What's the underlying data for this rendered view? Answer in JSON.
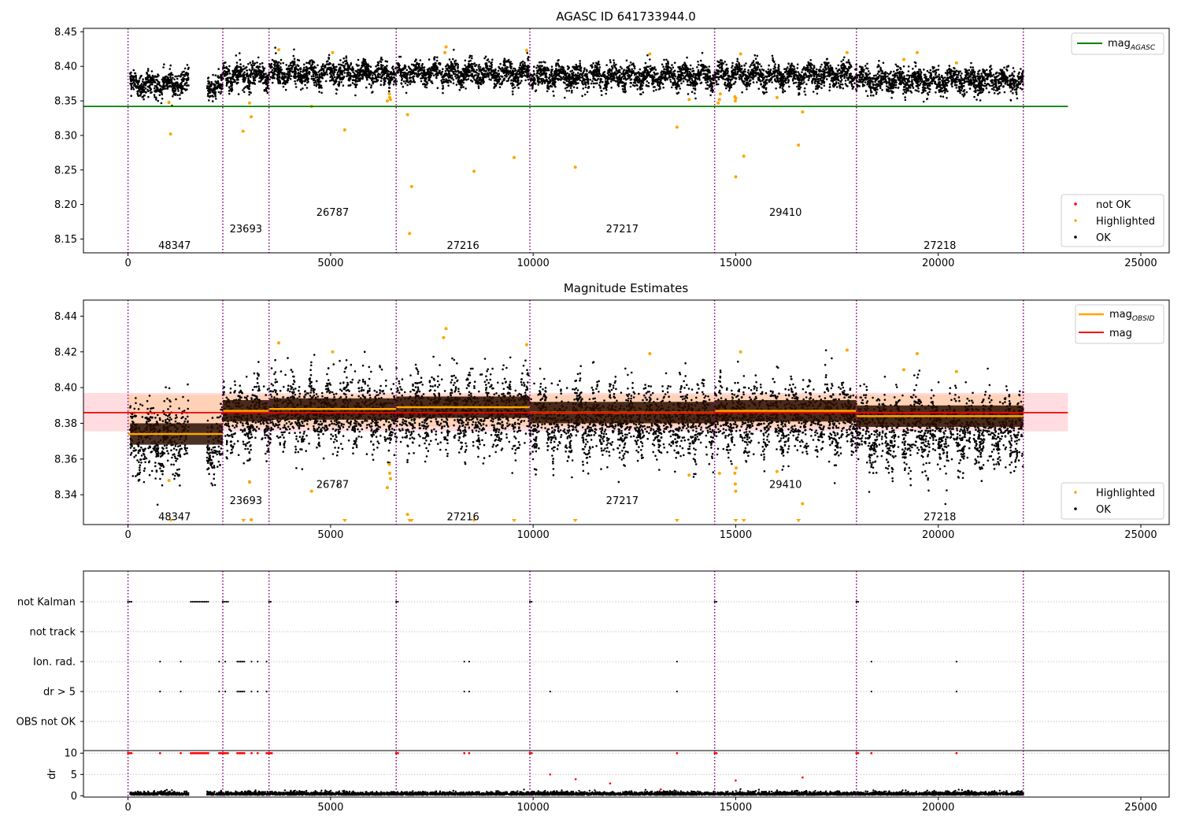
{
  "chart_data": [
    {
      "type": "scatter",
      "title": "AGASC ID 641733944.0",
      "xlim": [
        -1100,
        25700
      ],
      "ylim": [
        8.13,
        8.455
      ],
      "xticks": [
        0,
        5000,
        10000,
        15000,
        20000,
        25000
      ],
      "xtick_labels": [
        "0",
        "5000",
        "10000",
        "15000",
        "20000",
        "25000"
      ],
      "yticks": [
        8.15,
        8.2,
        8.25,
        8.3,
        8.35,
        8.4,
        8.45
      ],
      "ytick_labels": [
        "8.15",
        "8.20",
        "8.25",
        "8.30",
        "8.35",
        "8.40",
        "8.45"
      ],
      "mag_agasc": 8.342,
      "mag_agasc_x_range": [
        -1100,
        23200
      ],
      "mag_agasc_color": "#008000",
      "obsid_boundaries": [
        0,
        2340,
        3480,
        6620,
        9920,
        14480,
        17980,
        22100
      ],
      "obsid_labels": [
        {
          "text": "48347",
          "x": 1150,
          "y": 8.14
        },
        {
          "text": "23693",
          "x": 2910,
          "y": 8.164
        },
        {
          "text": "26787",
          "x": 5050,
          "y": 8.188
        },
        {
          "text": "27216",
          "x": 8270,
          "y": 8.14
        },
        {
          "text": "27217",
          "x": 12200,
          "y": 8.164
        },
        {
          "text": "29410",
          "x": 16230,
          "y": 8.188
        },
        {
          "text": "27218",
          "x": 20040,
          "y": 8.14
        }
      ],
      "segments": [
        {
          "x0": 50,
          "x1": 1500,
          "mean": 8.375
        },
        {
          "x0": 1950,
          "x1": 2340,
          "mean": 8.372
        },
        {
          "x0": 2340,
          "x1": 3480,
          "mean": 8.387
        },
        {
          "x0": 3480,
          "x1": 6620,
          "mean": 8.39
        },
        {
          "x0": 6620,
          "x1": 9920,
          "mean": 8.39
        },
        {
          "x0": 9920,
          "x1": 14480,
          "mean": 8.385
        },
        {
          "x0": 14480,
          "x1": 17980,
          "mean": 8.387
        },
        {
          "x0": 17980,
          "x1": 22100,
          "mean": 8.38
        }
      ],
      "outliers": [
        [
          1050,
          8.302
        ],
        [
          1010,
          8.348
        ],
        [
          2840,
          8.306
        ],
        [
          3040,
          8.327
        ],
        [
          3000,
          8.347
        ],
        [
          4530,
          8.342
        ],
        [
          5350,
          8.308
        ],
        [
          6400,
          8.35
        ],
        [
          6900,
          8.33
        ],
        [
          6950,
          8.158
        ],
        [
          7000,
          8.226
        ],
        [
          8540,
          8.248
        ],
        [
          9530,
          8.268
        ],
        [
          11040,
          8.254
        ],
        [
          13550,
          8.312
        ],
        [
          13850,
          8.352
        ],
        [
          14570,
          8.347
        ],
        [
          15000,
          8.24
        ],
        [
          15200,
          8.27
        ],
        [
          16550,
          8.286
        ],
        [
          16650,
          8.334
        ],
        [
          16020,
          8.355
        ],
        [
          7850,
          8.428
        ],
        [
          7820,
          8.42
        ],
        [
          3720,
          8.424
        ],
        [
          9840,
          8.423
        ],
        [
          15120,
          8.418
        ],
        [
          17750,
          8.42
        ],
        [
          19480,
          8.42
        ],
        [
          19150,
          8.41
        ],
        [
          20450,
          8.405
        ],
        [
          5050,
          8.42
        ],
        [
          12880,
          8.418
        ]
      ],
      "legend": {
        "upper": [
          "mag_AGASC"
        ],
        "lower": [
          "not OK",
          "Highlighted",
          "OK"
        ]
      }
    },
    {
      "type": "scatter",
      "title": "Magnitude Estimates",
      "xlim": [
        -1100,
        25700
      ],
      "ylim": [
        8.3233,
        8.449
      ],
      "xticks": [
        0,
        5000,
        10000,
        15000,
        20000,
        25000
      ],
      "xtick_labels": [
        "0",
        "5000",
        "10000",
        "15000",
        "20000",
        "25000"
      ],
      "yticks": [
        8.34,
        8.36,
        8.38,
        8.4,
        8.42,
        8.44
      ],
      "ytick_labels": [
        "8.34",
        "8.36",
        "8.38",
        "8.40",
        "8.42",
        "8.44"
      ],
      "mag": 8.386,
      "mag_band": [
        8.3755,
        8.397
      ],
      "mag_color": "#ff0000",
      "obsid_mags": [
        {
          "x0": 0,
          "x1": 2340,
          "mag": 8.374
        },
        {
          "x0": 2340,
          "x1": 3480,
          "mag": 8.387
        },
        {
          "x0": 3480,
          "x1": 6620,
          "mag": 8.388
        },
        {
          "x0": 6620,
          "x1": 9920,
          "mag": 8.389
        },
        {
          "x0": 9920,
          "x1": 14480,
          "mag": 8.386
        },
        {
          "x0": 14480,
          "x1": 17980,
          "mag": 8.387
        },
        {
          "x0": 17980,
          "x1": 22100,
          "mag": 8.384
        }
      ],
      "obsid_band": [
        8.378,
        8.396
      ],
      "obsid_labels": [
        {
          "text": "48347",
          "x": 1150,
          "y": 8.3275
        },
        {
          "text": "23693",
          "x": 2910,
          "y": 8.3365
        },
        {
          "text": "26787",
          "x": 5050,
          "y": 8.3455
        },
        {
          "text": "27216",
          "x": 8270,
          "y": 8.3275
        },
        {
          "text": "27217",
          "x": 12200,
          "y": 8.3365
        },
        {
          "text": "29410",
          "x": 16230,
          "y": 8.3455
        },
        {
          "text": "27218",
          "x": 20040,
          "y": 8.3275
        }
      ],
      "offscale_markers": [
        1060,
        2850,
        5350,
        6950,
        7000,
        8540,
        9530,
        11040,
        13550,
        15000,
        15200,
        16550
      ],
      "highlight_points": [
        [
          3720,
          8.425
        ],
        [
          7850,
          8.433
        ],
        [
          7790,
          8.428
        ],
        [
          9840,
          8.424
        ],
        [
          15120,
          8.42
        ],
        [
          17750,
          8.421
        ],
        [
          19480,
          8.419
        ],
        [
          5050,
          8.42
        ],
        [
          12880,
          8.419
        ],
        [
          3040,
          8.326
        ],
        [
          3000,
          8.347
        ],
        [
          4530,
          8.342
        ],
        [
          6400,
          8.344
        ],
        [
          6900,
          8.329
        ],
        [
          16650,
          8.335
        ],
        [
          1010,
          8.348
        ],
        [
          13850,
          8.351
        ],
        [
          16020,
          8.353
        ],
        [
          20450,
          8.409
        ],
        [
          19150,
          8.41
        ]
      ],
      "legend": {
        "upper": [
          "mag_OBSID",
          "mag"
        ],
        "lower": [
          "Highlighted",
          "OK"
        ]
      }
    },
    {
      "type": "scatter",
      "title": "",
      "xlim": [
        -1100,
        25700
      ],
      "flag_rows": [
        "not Kalman",
        "not track",
        "Ion. rad.",
        "dr > 5",
        "OBS not OK"
      ],
      "flag_points": {
        "not Kalman": [
          [
            0,
            110
          ],
          [
            1550,
            2000
          ],
          [
            2340,
            2480
          ],
          [
            3480,
            3560
          ],
          [
            6620,
            6680
          ],
          [
            9920,
            10000
          ],
          [
            14480,
            14530
          ],
          [
            17980,
            18030
          ]
        ],
        "not track": [],
        "Ion. rad.": [
          [
            790,
            790
          ],
          [
            1300,
            1300
          ],
          [
            2250,
            2250
          ],
          [
            2400,
            2400
          ],
          [
            2700,
            2900
          ],
          [
            3050,
            3050
          ],
          [
            3200,
            3200
          ],
          [
            3420,
            3420
          ],
          [
            8300,
            8300
          ],
          [
            8420,
            8420
          ],
          [
            13550,
            13550
          ],
          [
            18350,
            18350
          ],
          [
            20450,
            20450
          ]
        ],
        "dr > 5": [
          [
            790,
            790
          ],
          [
            1300,
            1300
          ],
          [
            2250,
            2250
          ],
          [
            2400,
            2400
          ],
          [
            2700,
            2900
          ],
          [
            3050,
            3050
          ],
          [
            3200,
            3200
          ],
          [
            3420,
            3420
          ],
          [
            8300,
            8300
          ],
          [
            8420,
            8420
          ],
          [
            10420,
            10420
          ],
          [
            13550,
            13550
          ],
          [
            18350,
            18350
          ],
          [
            20450,
            20450
          ]
        ],
        "OBS not OK": []
      },
      "dr_ylim": [
        -0.3,
        10.6
      ],
      "dr_yticks": [
        0,
        5,
        10
      ],
      "dr_ytick_labels": [
        "0",
        "5",
        "10"
      ],
      "dr_ylabel": "dr",
      "dr_clipped_ranges": [
        [
          0,
          110
        ],
        [
          790,
          790
        ],
        [
          1300,
          1300
        ],
        [
          1550,
          2000
        ],
        [
          2250,
          2480
        ],
        [
          2700,
          2900
        ],
        [
          3050,
          3050
        ],
        [
          3200,
          3200
        ],
        [
          3420,
          3560
        ],
        [
          6620,
          6680
        ],
        [
          8300,
          8300
        ],
        [
          8420,
          8420
        ],
        [
          9920,
          10000
        ],
        [
          13550,
          13550
        ],
        [
          14480,
          14530
        ],
        [
          17980,
          18030
        ],
        [
          18350,
          18350
        ],
        [
          20450,
          20450
        ]
      ],
      "dr_mid_points": [
        [
          10420,
          5.0
        ],
        [
          11050,
          3.9
        ],
        [
          11900,
          2.9
        ],
        [
          15000,
          3.6
        ],
        [
          16650,
          4.3
        ],
        [
          13150,
          1.5
        ]
      ],
      "xticks": [
        0,
        5000,
        10000,
        15000,
        20000,
        25000
      ],
      "xtick_labels": [
        "0",
        "5000",
        "10000",
        "15000",
        "20000",
        "25000"
      ]
    }
  ],
  "colors": {
    "ok": "#000000",
    "highlighted": "#ffa500",
    "not_ok": "#ff0000",
    "boundary": "#800080",
    "agasc_line": "#008000",
    "mag_line": "#ff0000",
    "obsid_line": "#ffa500",
    "mag_band": "#ffc0c6"
  },
  "legend_text": {
    "mag_agasc_main": "mag",
    "mag_agasc_sub": "AGASC",
    "not_ok": "not OK",
    "highlighted": "Highlighted",
    "ok": "OK",
    "mag_obsid_main": "mag",
    "mag_obsid_sub": "OBSID",
    "mag": "mag"
  }
}
